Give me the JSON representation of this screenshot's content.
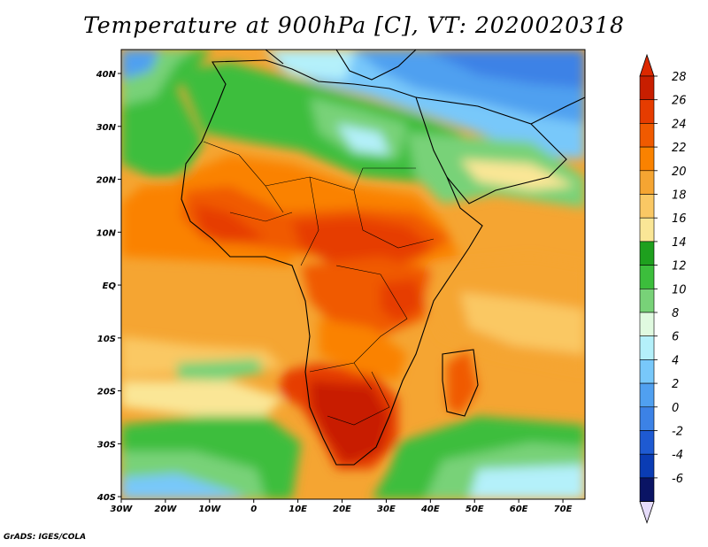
{
  "title": "Temperature at 900hPa [C], VT: 2020020318",
  "credit": "GrADS: IGES/COLA",
  "map": {
    "lon_range": [
      -30,
      75
    ],
    "lat_range": [
      -40,
      45
    ],
    "lon_ticks": [
      "30W",
      "20W",
      "10W",
      "0",
      "10E",
      "20E",
      "30E",
      "40E",
      "50E",
      "60E",
      "70E"
    ],
    "lat_ticks": [
      "40N",
      "30N",
      "20N",
      "10N",
      "EQ",
      "10S",
      "20S",
      "30S",
      "40S"
    ]
  },
  "colorbar": {
    "labels": [
      "28",
      "26",
      "24",
      "22",
      "20",
      "18",
      "16",
      "14",
      "12",
      "10",
      "8",
      "6",
      "4",
      "2",
      "0",
      "-2",
      "-4",
      "-6"
    ],
    "colors": [
      "#c81e00",
      "#e63c00",
      "#f05a00",
      "#fa8200",
      "#f5a532",
      "#fac864",
      "#fae696",
      "#1ea01e",
      "#3cbe3c",
      "#78d278",
      "#e0fae0",
      "#b4f0fa",
      "#78c8fa",
      "#50a0f0",
      "#3c82e6",
      "#1e5ad2",
      "#0a3cb4",
      "#0a1464"
    ],
    "top_color": "#dc2800",
    "bottom_color": "#e6dcfa"
  }
}
